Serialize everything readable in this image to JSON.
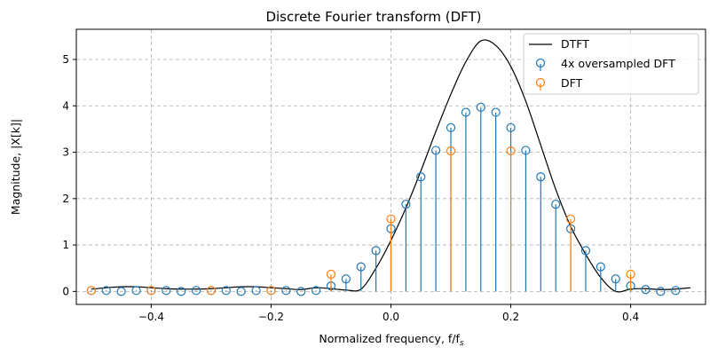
{
  "chart_data": {
    "type": "line",
    "title": "Discrete Fourier transform (DFT)",
    "xlabel": "Normalized frequency, f/f",
    "xlabel_subscript": "s",
    "ylabel": "Magnitude, |X[k]|",
    "xlim": [
      -0.525,
      0.525
    ],
    "ylim": [
      -0.28,
      5.65
    ],
    "xticks": [
      -0.4,
      -0.2,
      0.0,
      0.2,
      0.4
    ],
    "xtick_labels": [
      "−0.4",
      "−0.2",
      "0.0",
      "0.2",
      "0.4"
    ],
    "yticks": [
      0,
      1,
      2,
      3,
      4,
      5
    ],
    "ytick_labels": [
      "0",
      "1",
      "2",
      "3",
      "4",
      "5"
    ],
    "grid": true,
    "legend_position": "top-right",
    "colors": {
      "dtft": "#000000",
      "oversampled": "#1f77b4",
      "dft": "#ff7f0e",
      "grid": "#b0b0b0"
    },
    "dtft": {
      "name": "DTFT",
      "x": [
        -0.5,
        -0.475,
        -0.45,
        -0.425,
        -0.4,
        -0.375,
        -0.35,
        -0.325,
        -0.3,
        -0.275,
        -0.25,
        -0.225,
        -0.2,
        -0.175,
        -0.15,
        -0.125,
        -0.1,
        -0.075,
        -0.05,
        -0.025,
        0.0,
        0.025,
        0.05,
        0.075,
        0.1,
        0.125,
        0.15,
        0.175,
        0.2,
        0.225,
        0.25,
        0.275,
        0.3,
        0.325,
        0.35,
        0.375,
        0.4,
        0.425,
        0.45,
        0.475,
        0.5
      ],
      "y": [
        0.05,
        0.08,
        0.1,
        0.1,
        0.08,
        0.06,
        0.05,
        0.05,
        0.06,
        0.08,
        0.1,
        0.1,
        0.08,
        0.06,
        0.04,
        0.08,
        0.06,
        0.03,
        0.05,
        0.5,
        1.1,
        1.8,
        2.6,
        3.45,
        4.25,
        4.95,
        5.4,
        5.3,
        4.85,
        4.1,
        3.15,
        2.2,
        1.4,
        0.8,
        0.3,
        0.0,
        0.05,
        0.06,
        0.04,
        0.05,
        0.08
      ]
    },
    "oversampled": {
      "name": "4x oversampled DFT",
      "x": [
        -0.5,
        -0.475,
        -0.45,
        -0.425,
        -0.4,
        -0.375,
        -0.35,
        -0.325,
        -0.3,
        -0.275,
        -0.25,
        -0.225,
        -0.2,
        -0.175,
        -0.15,
        -0.125,
        -0.1,
        -0.075,
        -0.05,
        -0.025,
        0.0,
        0.025,
        0.05,
        0.075,
        0.1,
        0.125,
        0.15,
        0.175,
        0.2,
        0.225,
        0.25,
        0.275,
        0.3,
        0.325,
        0.35,
        0.375,
        0.4,
        0.425,
        0.45,
        0.475
      ],
      "y": [
        0.02,
        0.02,
        0.0,
        0.02,
        0.02,
        0.02,
        0.0,
        0.02,
        0.02,
        0.02,
        0.0,
        0.02,
        0.02,
        0.02,
        0.0,
        0.02,
        0.12,
        0.27,
        0.53,
        0.88,
        1.35,
        1.88,
        2.47,
        3.04,
        3.53,
        3.86,
        3.97,
        3.86,
        3.53,
        3.04,
        2.47,
        1.88,
        1.35,
        0.88,
        0.53,
        0.27,
        0.12,
        0.04,
        0.0,
        0.02
      ]
    },
    "dft": {
      "name": "DFT",
      "x": [
        -0.5,
        -0.4,
        -0.3,
        -0.2,
        -0.1,
        0.0,
        0.1,
        0.2,
        0.3,
        0.4
      ],
      "y": [
        0.02,
        0.02,
        0.02,
        0.02,
        0.37,
        1.56,
        3.03,
        3.03,
        1.56,
        0.37
      ]
    }
  }
}
